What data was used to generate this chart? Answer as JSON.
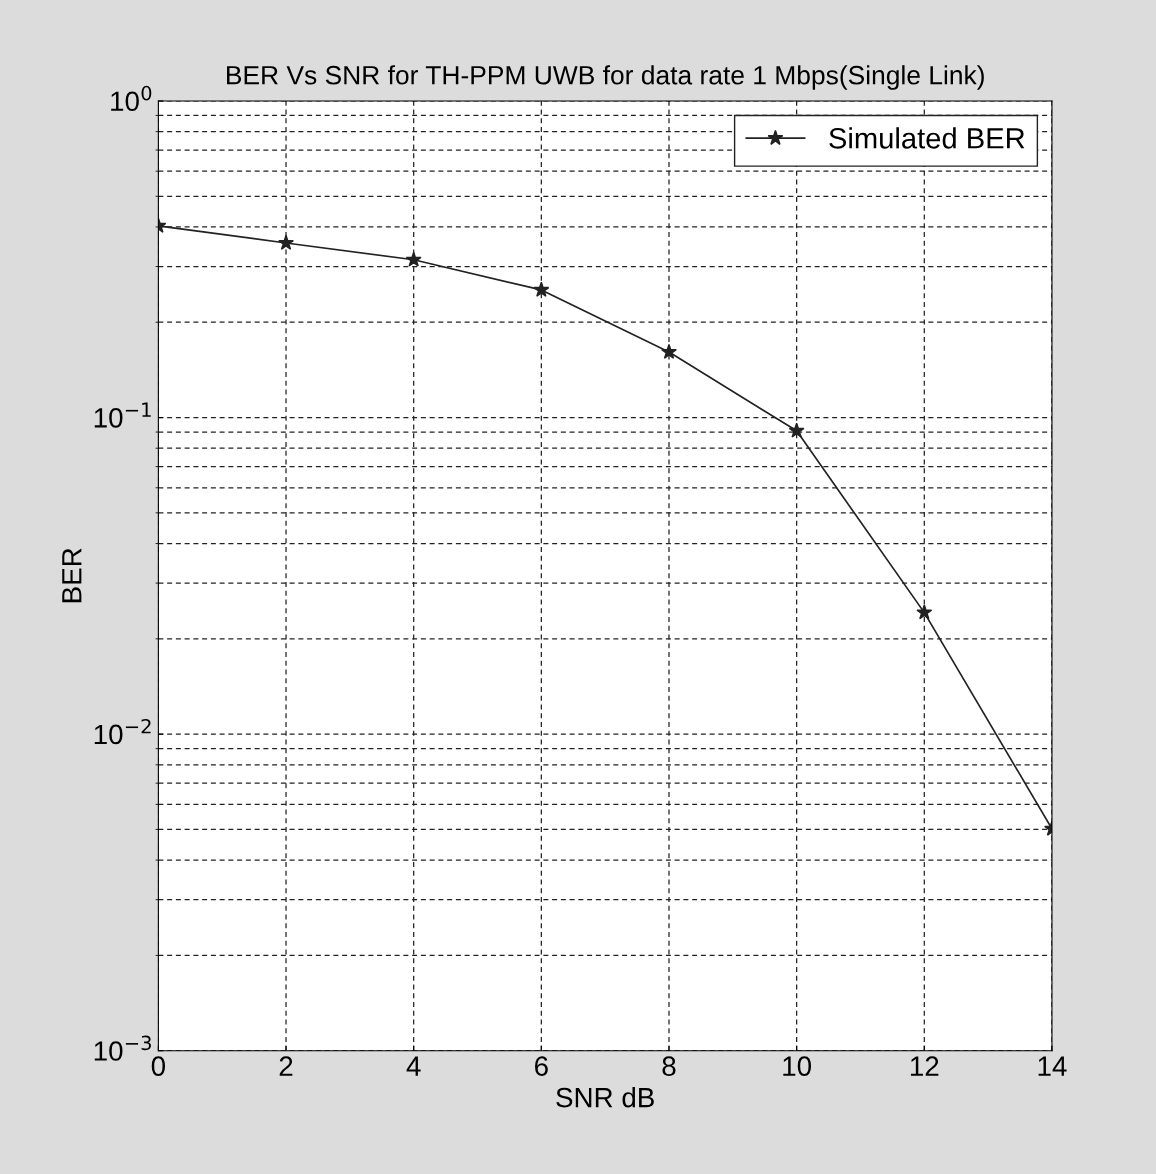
{
  "chart_data": {
    "type": "line",
    "title": "BER Vs SNR for TH-PPM UWB for data rate 1 Mbps(Single Link)",
    "xlabel": "SNR dB",
    "ylabel": "BER",
    "x": [
      0,
      2,
      4,
      6,
      8,
      10,
      12,
      14
    ],
    "series": [
      {
        "name": "Simulated BER",
        "color": "#222222",
        "values": [
          0.403,
          0.356,
          0.315,
          0.253,
          0.161,
          0.0908,
          0.0242,
          0.00502
        ]
      }
    ],
    "xlim": [
      0,
      14
    ],
    "xticks": [
      0,
      2,
      4,
      6,
      8,
      10,
      12,
      14
    ],
    "log": "y",
    "ylim": [
      0.001,
      1
    ],
    "yticks": [
      {
        "value": 0.001,
        "label": "10$^{−3}$"
      },
      {
        "value": 0.01,
        "label": "10$^{−2}$"
      },
      {
        "value": 0.1,
        "label": "10$^{−1}$"
      },
      {
        "value": 1,
        "label": "10$^{0}$"
      }
    ],
    "grid": true,
    "legend": "top right",
    "marker": "star",
    "line_style": "solid"
  }
}
